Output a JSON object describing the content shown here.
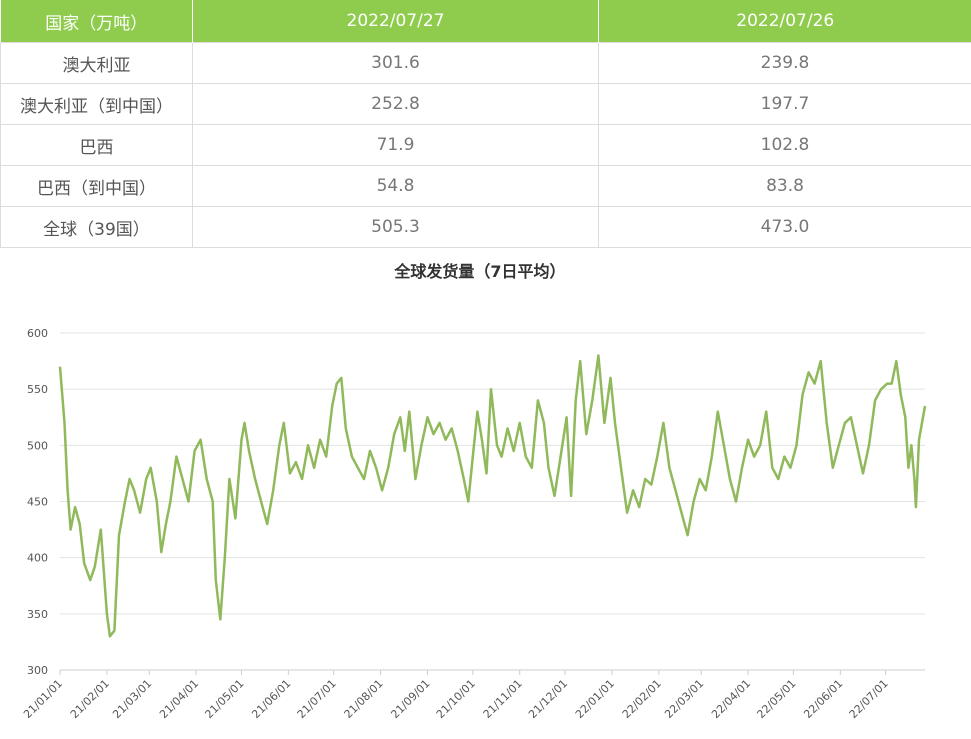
{
  "table": {
    "headers": [
      "国家（万吨）",
      "2022/07/27",
      "2022/07/26"
    ],
    "rows": [
      [
        "澳大利亚",
        "301.6",
        "239.8"
      ],
      [
        "澳大利亚（到中国）",
        "252.8",
        "197.7"
      ],
      [
        "巴西",
        "71.9",
        "102.8"
      ],
      [
        "巴西（到中国）",
        "54.8",
        "83.8"
      ],
      [
        "全球（39国）",
        "505.3",
        "473.0"
      ]
    ]
  },
  "colors": {
    "header_bg": "#8fcc4e",
    "line": "#8fb95a",
    "grid": "#e3e3e3"
  },
  "chart_data": {
    "type": "line",
    "title": "全球发货量（7日平均）",
    "xlabel": "",
    "ylabel": "",
    "ylim": [
      300,
      600
    ],
    "yticks": [
      300,
      350,
      400,
      450,
      500,
      550,
      600
    ],
    "grid": true,
    "xtick_labels": [
      "21/01/01",
      "21/02/01",
      "21/03/01",
      "21/04/01",
      "21/05/01",
      "21/06/01",
      "21/07/01",
      "21/08/01",
      "21/09/01",
      "21/10/01",
      "21/11/01",
      "21/12/01",
      "22/01/01",
      "22/02/01",
      "22/03/01",
      "22/04/01",
      "22/05/01",
      "22/06/01",
      "22/07/01"
    ],
    "x_range": [
      "2021-01-01",
      "2022-07-27"
    ],
    "series": [
      {
        "points": [
          [
            "2021-01-01",
            570
          ],
          [
            "2021-01-04",
            520
          ],
          [
            "2021-01-06",
            460
          ],
          [
            "2021-01-08",
            425
          ],
          [
            "2021-01-11",
            445
          ],
          [
            "2021-01-14",
            430
          ],
          [
            "2021-01-17",
            395
          ],
          [
            "2021-01-21",
            380
          ],
          [
            "2021-01-24",
            392
          ],
          [
            "2021-01-28",
            425
          ],
          [
            "2021-02-01",
            350
          ],
          [
            "2021-02-03",
            330
          ],
          [
            "2021-02-06",
            335
          ],
          [
            "2021-02-09",
            420
          ],
          [
            "2021-02-13",
            450
          ],
          [
            "2021-02-16",
            470
          ],
          [
            "2021-02-19",
            460
          ],
          [
            "2021-02-23",
            440
          ],
          [
            "2021-02-27",
            470
          ],
          [
            "2021-03-02",
            480
          ],
          [
            "2021-03-06",
            450
          ],
          [
            "2021-03-09",
            405
          ],
          [
            "2021-03-12",
            430
          ],
          [
            "2021-03-15",
            450
          ],
          [
            "2021-03-19",
            490
          ],
          [
            "2021-03-23",
            470
          ],
          [
            "2021-03-27",
            450
          ],
          [
            "2021-03-31",
            495
          ],
          [
            "2021-04-04",
            505
          ],
          [
            "2021-04-08",
            470
          ],
          [
            "2021-04-12",
            450
          ],
          [
            "2021-04-14",
            380
          ],
          [
            "2021-04-17",
            345
          ],
          [
            "2021-04-20",
            400
          ],
          [
            "2021-04-23",
            470
          ],
          [
            "2021-04-27",
            435
          ],
          [
            "2021-05-01",
            505
          ],
          [
            "2021-05-03",
            520
          ],
          [
            "2021-05-06",
            495
          ],
          [
            "2021-05-10",
            470
          ],
          [
            "2021-05-14",
            450
          ],
          [
            "2021-05-18",
            430
          ],
          [
            "2021-05-22",
            460
          ],
          [
            "2021-05-26",
            500
          ],
          [
            "2021-05-29",
            520
          ],
          [
            "2021-06-02",
            475
          ],
          [
            "2021-06-06",
            485
          ],
          [
            "2021-06-10",
            470
          ],
          [
            "2021-06-14",
            500
          ],
          [
            "2021-06-18",
            480
          ],
          [
            "2021-06-22",
            505
          ],
          [
            "2021-06-26",
            490
          ],
          [
            "2021-06-30",
            535
          ],
          [
            "2021-07-03",
            555
          ],
          [
            "2021-07-06",
            560
          ],
          [
            "2021-07-09",
            515
          ],
          [
            "2021-07-13",
            490
          ],
          [
            "2021-07-17",
            480
          ],
          [
            "2021-07-21",
            470
          ],
          [
            "2021-07-25",
            495
          ],
          [
            "2021-07-29",
            480
          ],
          [
            "2021-08-02",
            460
          ],
          [
            "2021-08-06",
            480
          ],
          [
            "2021-08-10",
            510
          ],
          [
            "2021-08-14",
            525
          ],
          [
            "2021-08-17",
            495
          ],
          [
            "2021-08-20",
            530
          ],
          [
            "2021-08-24",
            470
          ],
          [
            "2021-08-28",
            500
          ],
          [
            "2021-09-01",
            525
          ],
          [
            "2021-09-05",
            510
          ],
          [
            "2021-09-09",
            520
          ],
          [
            "2021-09-13",
            505
          ],
          [
            "2021-09-17",
            515
          ],
          [
            "2021-09-21",
            495
          ],
          [
            "2021-09-25",
            470
          ],
          [
            "2021-09-28",
            450
          ],
          [
            "2021-10-01",
            490
          ],
          [
            "2021-10-04",
            530
          ],
          [
            "2021-10-07",
            505
          ],
          [
            "2021-10-10",
            475
          ],
          [
            "2021-10-13",
            550
          ],
          [
            "2021-10-17",
            500
          ],
          [
            "2021-10-20",
            490
          ],
          [
            "2021-10-24",
            515
          ],
          [
            "2021-10-28",
            495
          ],
          [
            "2021-11-01",
            520
          ],
          [
            "2021-11-05",
            490
          ],
          [
            "2021-11-09",
            480
          ],
          [
            "2021-11-13",
            540
          ],
          [
            "2021-11-17",
            520
          ],
          [
            "2021-11-20",
            480
          ],
          [
            "2021-11-24",
            455
          ],
          [
            "2021-11-28",
            490
          ],
          [
            "2021-12-02",
            525
          ],
          [
            "2021-12-05",
            455
          ],
          [
            "2021-12-08",
            540
          ],
          [
            "2021-12-11",
            575
          ],
          [
            "2021-12-15",
            510
          ],
          [
            "2021-12-19",
            540
          ],
          [
            "2021-12-23",
            580
          ],
          [
            "2021-12-27",
            520
          ],
          [
            "2021-12-31",
            560
          ],
          [
            "2022-01-03",
            520
          ],
          [
            "2022-01-07",
            480
          ],
          [
            "2022-01-11",
            440
          ],
          [
            "2022-01-15",
            460
          ],
          [
            "2022-01-19",
            445
          ],
          [
            "2022-01-23",
            470
          ],
          [
            "2022-01-27",
            465
          ],
          [
            "2022-01-31",
            490
          ],
          [
            "2022-02-04",
            520
          ],
          [
            "2022-02-08",
            480
          ],
          [
            "2022-02-12",
            460
          ],
          [
            "2022-02-16",
            440
          ],
          [
            "2022-02-20",
            420
          ],
          [
            "2022-02-24",
            450
          ],
          [
            "2022-02-28",
            470
          ],
          [
            "2022-03-04",
            460
          ],
          [
            "2022-03-08",
            490
          ],
          [
            "2022-03-12",
            530
          ],
          [
            "2022-03-16",
            500
          ],
          [
            "2022-03-20",
            470
          ],
          [
            "2022-03-24",
            450
          ],
          [
            "2022-03-28",
            480
          ],
          [
            "2022-04-01",
            505
          ],
          [
            "2022-04-05",
            490
          ],
          [
            "2022-04-09",
            500
          ],
          [
            "2022-04-13",
            530
          ],
          [
            "2022-04-17",
            480
          ],
          [
            "2022-04-21",
            470
          ],
          [
            "2022-04-25",
            490
          ],
          [
            "2022-04-29",
            480
          ],
          [
            "2022-05-03",
            500
          ],
          [
            "2022-05-07",
            545
          ],
          [
            "2022-05-11",
            565
          ],
          [
            "2022-05-15",
            555
          ],
          [
            "2022-05-19",
            575
          ],
          [
            "2022-05-23",
            520
          ],
          [
            "2022-05-27",
            480
          ],
          [
            "2022-05-31",
            500
          ],
          [
            "2022-06-04",
            520
          ],
          [
            "2022-06-08",
            525
          ],
          [
            "2022-06-12",
            500
          ],
          [
            "2022-06-16",
            475
          ],
          [
            "2022-06-20",
            500
          ],
          [
            "2022-06-24",
            540
          ],
          [
            "2022-06-28",
            550
          ],
          [
            "2022-07-02",
            555
          ],
          [
            "2022-07-05",
            555
          ],
          [
            "2022-07-08",
            575
          ],
          [
            "2022-07-11",
            545
          ],
          [
            "2022-07-14",
            525
          ],
          [
            "2022-07-16",
            480
          ],
          [
            "2022-07-18",
            500
          ],
          [
            "2022-07-20",
            470
          ],
          [
            "2022-07-21",
            445
          ],
          [
            "2022-07-23",
            505
          ],
          [
            "2022-07-25",
            520
          ],
          [
            "2022-07-27",
            535
          ]
        ]
      }
    ]
  }
}
